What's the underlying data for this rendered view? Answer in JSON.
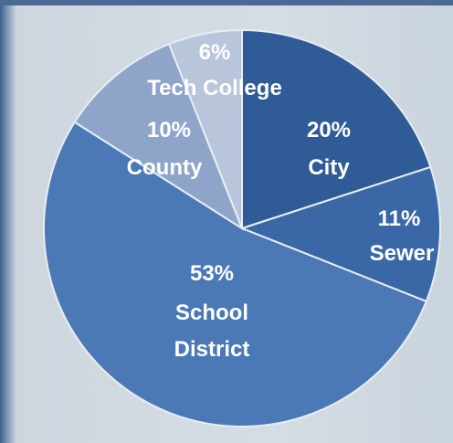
{
  "chart_data": {
    "type": "pie",
    "categories": [
      "City",
      "Sewer",
      "School District",
      "County",
      "Tech College"
    ],
    "values": [
      20,
      11,
      53,
      10,
      6
    ],
    "value_labels": [
      "20%",
      "11%",
      "53%",
      "10%",
      "6%"
    ],
    "colors": [
      "#2f5c96",
      "#3a68a6",
      "#4b79b6",
      "#8ea5c9",
      "#b8c5db"
    ]
  }
}
